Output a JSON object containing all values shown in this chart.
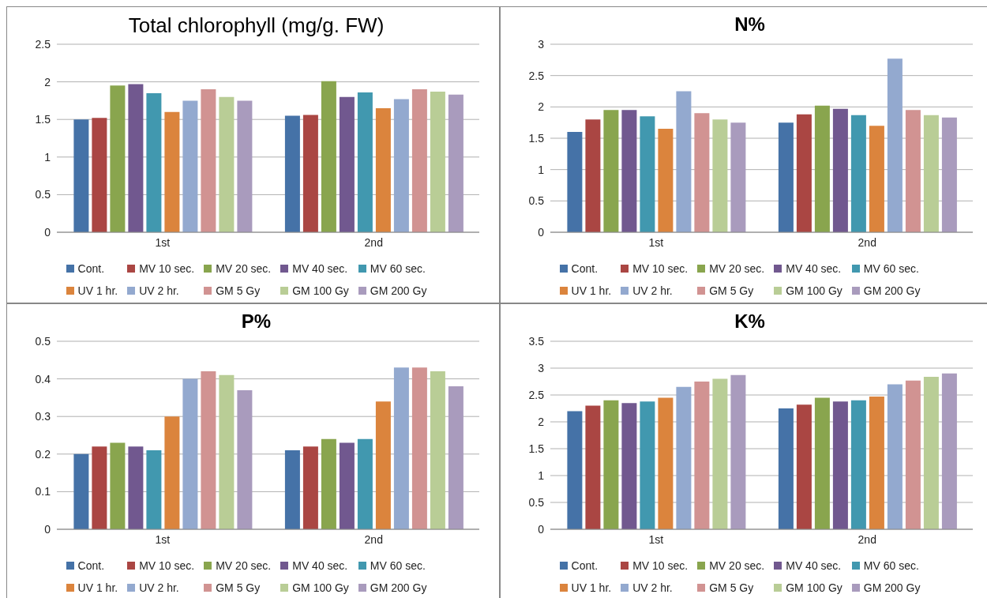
{
  "chart_data": [
    {
      "type": "bar",
      "title": "Total chlorophyll (mg/g. FW)",
      "categories": [
        "1st",
        "2nd"
      ],
      "ylim": [
        0,
        2.5
      ],
      "yticks": [
        0,
        0.5,
        1,
        1.5,
        2,
        2.5
      ],
      "grid": "y",
      "legend": "bottom",
      "series": [
        {
          "name": "Cont.",
          "color": "#4572a7",
          "values": [
            1.5,
            1.55
          ]
        },
        {
          "name": "MV 10 sec.",
          "color": "#aa4643",
          "values": [
            1.52,
            1.56
          ]
        },
        {
          "name": "MV 20 sec.",
          "color": "#89a54e",
          "values": [
            1.95,
            2.01
          ]
        },
        {
          "name": "MV 40 sec.",
          "color": "#71588f",
          "values": [
            1.97,
            1.8
          ]
        },
        {
          "name": "MV 60 sec.",
          "color": "#4198af",
          "values": [
            1.85,
            1.86
          ]
        },
        {
          "name": "UV 1 hr.",
          "color": "#db843d",
          "values": [
            1.6,
            1.65
          ]
        },
        {
          "name": "UV 2 hr.",
          "color": "#93a9cf",
          "values": [
            1.75,
            1.77
          ]
        },
        {
          "name": "GM 5 Gy",
          "color": "#d19392",
          "values": [
            1.9,
            1.9
          ]
        },
        {
          "name": "GM 100 Gy",
          "color": "#b9cd96",
          "values": [
            1.8,
            1.87
          ]
        },
        {
          "name": "GM 200 Gy",
          "color": "#a99bbd",
          "values": [
            1.75,
            1.83
          ]
        }
      ]
    },
    {
      "type": "bar",
      "title": "N%",
      "categories": [
        "1st",
        "2nd"
      ],
      "ylim": [
        0,
        3
      ],
      "yticks": [
        0,
        0.5,
        1,
        1.5,
        2,
        2.5,
        3
      ],
      "grid": "y",
      "legend": "bottom",
      "series": [
        {
          "name": "Cont.",
          "color": "#4572a7",
          "values": [
            1.6,
            1.75
          ]
        },
        {
          "name": "MV 10 sec.",
          "color": "#aa4643",
          "values": [
            1.8,
            1.88
          ]
        },
        {
          "name": "MV 20 sec.",
          "color": "#89a54e",
          "values": [
            1.95,
            2.02
          ]
        },
        {
          "name": "MV 40 sec.",
          "color": "#71588f",
          "values": [
            1.95,
            1.97
          ]
        },
        {
          "name": "MV 60 sec.",
          "color": "#4198af",
          "values": [
            1.85,
            1.87
          ]
        },
        {
          "name": "UV 1 hr.",
          "color": "#db843d",
          "values": [
            1.65,
            1.7
          ]
        },
        {
          "name": "UV 2 hr.",
          "color": "#93a9cf",
          "values": [
            2.25,
            2.77
          ]
        },
        {
          "name": "GM 5 Gy",
          "color": "#d19392",
          "values": [
            1.9,
            1.95
          ]
        },
        {
          "name": "GM 100 Gy",
          "color": "#b9cd96",
          "values": [
            1.8,
            1.87
          ]
        },
        {
          "name": "GM 200 Gy",
          "color": "#a99bbd",
          "values": [
            1.75,
            1.83
          ]
        }
      ]
    },
    {
      "type": "bar",
      "title": "P%",
      "categories": [
        "1st",
        "2nd"
      ],
      "ylim": [
        0,
        0.5
      ],
      "yticks": [
        0,
        0.1,
        0.2,
        0.3,
        0.4,
        0.5
      ],
      "grid": "y",
      "legend": "bottom",
      "series": [
        {
          "name": "Cont.",
          "color": "#4572a7",
          "values": [
            0.2,
            0.21
          ]
        },
        {
          "name": "MV 10 sec.",
          "color": "#aa4643",
          "values": [
            0.22,
            0.22
          ]
        },
        {
          "name": "MV 20 sec.",
          "color": "#89a54e",
          "values": [
            0.23,
            0.24
          ]
        },
        {
          "name": "MV 40 sec.",
          "color": "#71588f",
          "values": [
            0.22,
            0.23
          ]
        },
        {
          "name": "MV 60 sec.",
          "color": "#4198af",
          "values": [
            0.21,
            0.24
          ]
        },
        {
          "name": "UV 1 hr.",
          "color": "#db843d",
          "values": [
            0.3,
            0.34
          ]
        },
        {
          "name": "UV 2 hr.",
          "color": "#93a9cf",
          "values": [
            0.4,
            0.43
          ]
        },
        {
          "name": "GM 5 Gy",
          "color": "#d19392",
          "values": [
            0.42,
            0.43
          ]
        },
        {
          "name": "GM 100 Gy",
          "color": "#b9cd96",
          "values": [
            0.41,
            0.42
          ]
        },
        {
          "name": "GM 200 Gy",
          "color": "#a99bbd",
          "values": [
            0.37,
            0.38
          ]
        }
      ]
    },
    {
      "type": "bar",
      "title": "K%",
      "categories": [
        "1st",
        "2nd"
      ],
      "ylim": [
        0,
        3.5
      ],
      "yticks": [
        0,
        0.5,
        1,
        1.5,
        2,
        2.5,
        3,
        3.5
      ],
      "grid": "y",
      "legend": "bottom",
      "series": [
        {
          "name": "Cont.",
          "color": "#4572a7",
          "values": [
            2.2,
            2.25
          ]
        },
        {
          "name": "MV 10 sec.",
          "color": "#aa4643",
          "values": [
            2.3,
            2.32
          ]
        },
        {
          "name": "MV 20 sec.",
          "color": "#89a54e",
          "values": [
            2.4,
            2.45
          ]
        },
        {
          "name": "MV 40 sec.",
          "color": "#71588f",
          "values": [
            2.35,
            2.38
          ]
        },
        {
          "name": "MV 60 sec.",
          "color": "#4198af",
          "values": [
            2.38,
            2.4
          ]
        },
        {
          "name": "UV 1 hr.",
          "color": "#db843d",
          "values": [
            2.45,
            2.47
          ]
        },
        {
          "name": "UV 2 hr.",
          "color": "#93a9cf",
          "values": [
            2.65,
            2.7
          ]
        },
        {
          "name": "GM 5 Gy",
          "color": "#d19392",
          "values": [
            2.75,
            2.77
          ]
        },
        {
          "name": "GM 100 Gy",
          "color": "#b9cd96",
          "values": [
            2.8,
            2.84
          ]
        },
        {
          "name": "GM 200 Gy",
          "color": "#a99bbd",
          "values": [
            2.87,
            2.9
          ]
        }
      ]
    }
  ]
}
